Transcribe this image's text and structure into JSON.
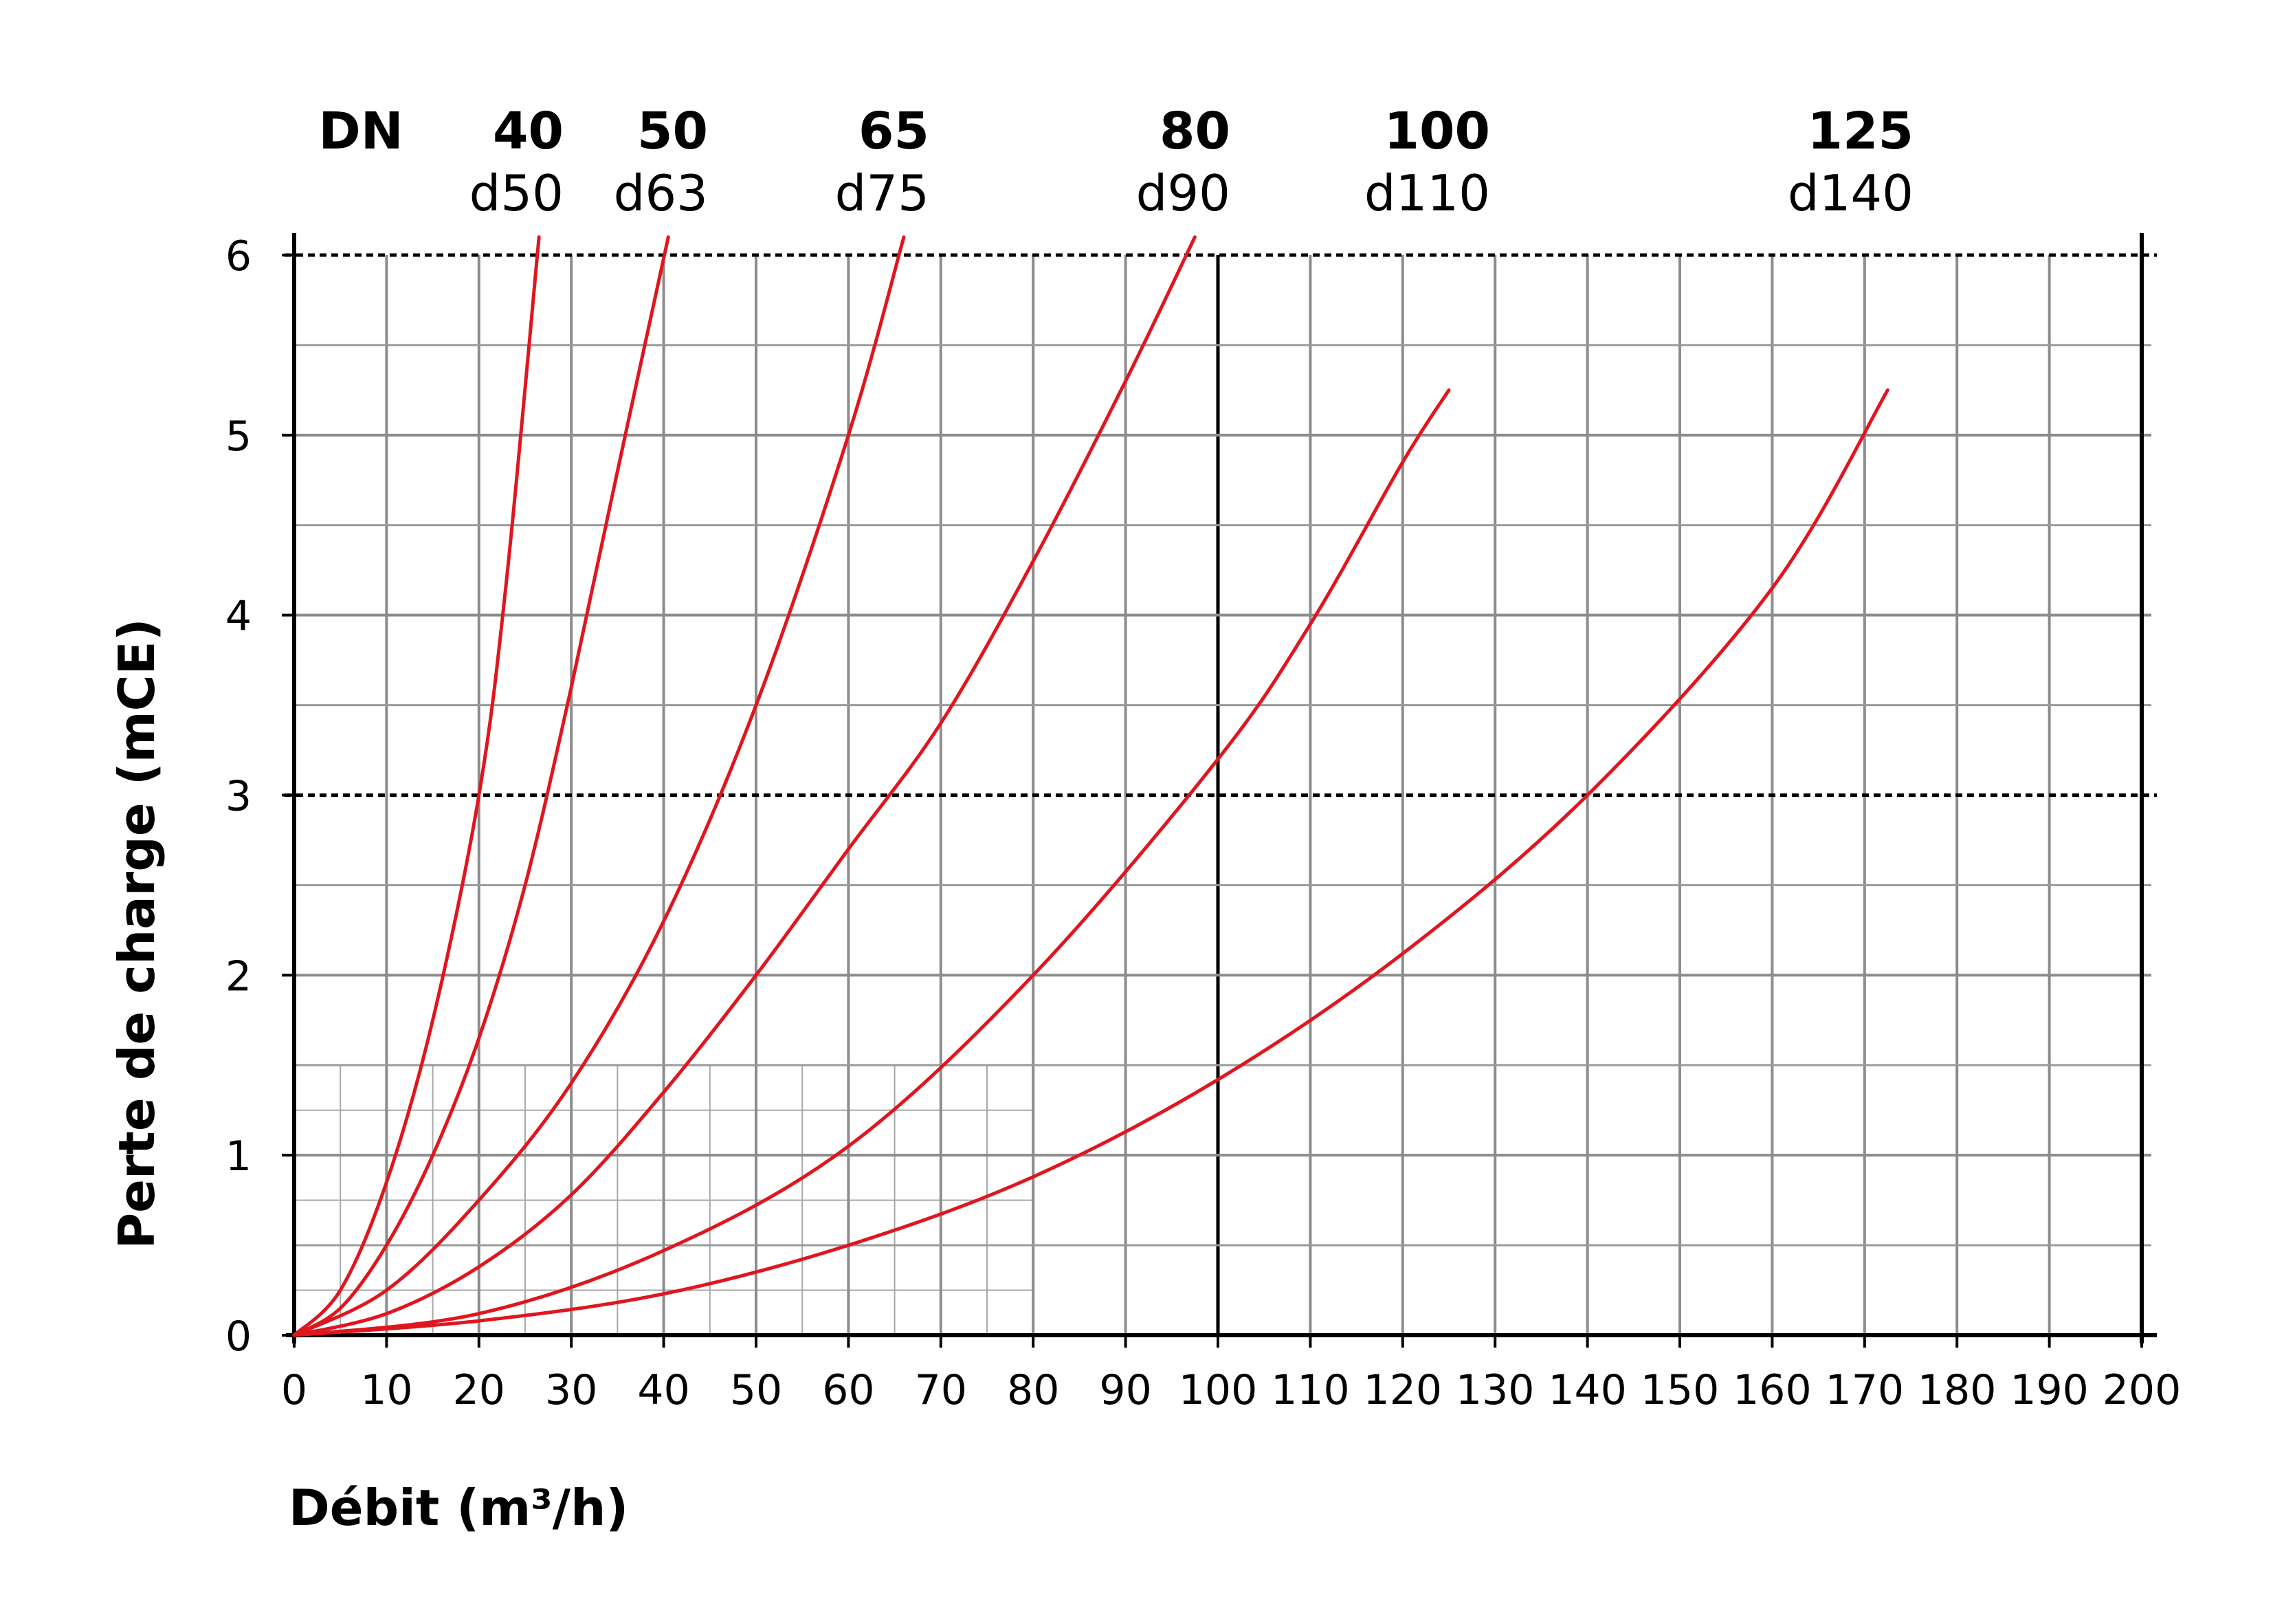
{
  "chart_data": {
    "type": "line",
    "xlabel": "Débit (m³/h)",
    "ylabel": "Perte de charge (mCE)",
    "xlim": [
      0,
      200
    ],
    "ylim": [
      0,
      6
    ],
    "x_ticks": [
      0,
      10,
      20,
      30,
      40,
      50,
      60,
      70,
      80,
      90,
      100,
      110,
      120,
      130,
      140,
      150,
      160,
      170,
      180,
      190,
      200
    ],
    "y_ticks": [
      0,
      1,
      2,
      3,
      4,
      5,
      6
    ],
    "grid": true,
    "dashed_reference_lines_y": [
      3,
      6
    ],
    "header_label": "DN",
    "line_color": "#e0161f",
    "series": [
      {
        "name": "40",
        "diameter": "d50",
        "x": [
          0,
          5,
          10,
          15,
          20,
          23,
          26.5
        ],
        "y": [
          0,
          0.25,
          0.85,
          1.75,
          3.0,
          4.2,
          6.1
        ]
      },
      {
        "name": "50",
        "diameter": "d63",
        "x": [
          0,
          5,
          10,
          15,
          20,
          25,
          30,
          35,
          40.5
        ],
        "y": [
          0,
          0.15,
          0.5,
          1.0,
          1.65,
          2.5,
          3.6,
          4.8,
          6.1
        ]
      },
      {
        "name": "65",
        "diameter": "d75",
        "x": [
          0,
          10,
          20,
          30,
          40,
          50,
          60,
          66
        ],
        "y": [
          0,
          0.25,
          0.75,
          1.4,
          2.3,
          3.5,
          5.0,
          6.1
        ]
      },
      {
        "name": "80",
        "diameter": "d90",
        "x": [
          0,
          10,
          20,
          30,
          40,
          50,
          60,
          70,
          80,
          90,
          97.5
        ],
        "y": [
          0,
          0.12,
          0.38,
          0.78,
          1.35,
          2.0,
          2.7,
          3.4,
          4.3,
          5.3,
          6.1
        ]
      },
      {
        "name": "100",
        "diameter": "d110",
        "x": [
          0,
          20,
          40,
          60,
          80,
          100,
          110,
          120,
          125
        ],
        "y": [
          0,
          0.12,
          0.47,
          1.05,
          2.0,
          3.2,
          3.95,
          4.85,
          5.25
        ]
      },
      {
        "name": "125",
        "diameter": "d140",
        "x": [
          0,
          20,
          40,
          60,
          80,
          100,
          120,
          140,
          160,
          172.5
        ],
        "y": [
          0,
          0.08,
          0.23,
          0.5,
          0.88,
          1.42,
          2.12,
          3.0,
          4.15,
          5.25
        ]
      }
    ]
  }
}
